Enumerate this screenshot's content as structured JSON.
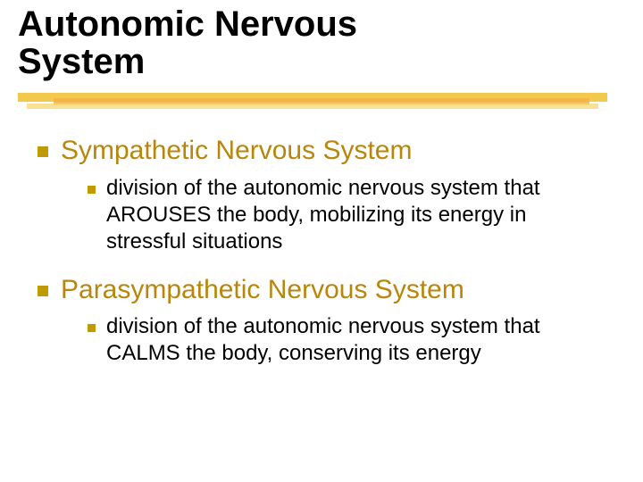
{
  "title_line1": "Autonomic Nervous",
  "title_line2": "System",
  "colors": {
    "title_text": "#000000",
    "heading_text": "#b8860b",
    "body_text": "#000000",
    "bullet": "#c19a00",
    "underline_main": "#f2c94c",
    "underline_accent1": "#f6b042",
    "underline_accent2": "#f8d978",
    "background": "#ffffff"
  },
  "typography": {
    "title_fontsize": 40,
    "title_weight": 900,
    "heading_fontsize": 30,
    "body_fontsize": 24,
    "font_family": "Verdana"
  },
  "items": [
    {
      "heading": "Sympathetic Nervous System",
      "sub": "division of the autonomic nervous system that AROUSES the body, mobilizing its energy in stressful situations"
    },
    {
      "heading": "Parasympathetic Nervous System",
      "sub": "division of the autonomic nervous system that CALMS the body, conserving its energy"
    }
  ]
}
